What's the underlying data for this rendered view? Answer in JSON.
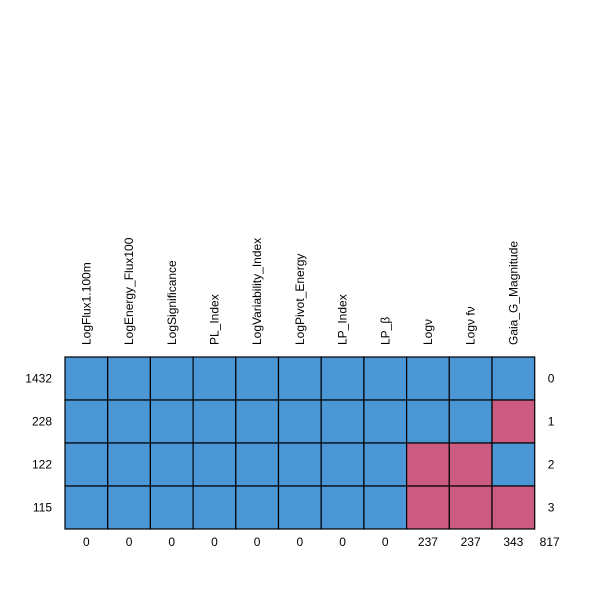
{
  "chart_data": {
    "type": "heatmap",
    "title": "",
    "columns": [
      "LogFlux1.100m",
      "LogEnergy_Flux100",
      "LogSignificance",
      "PL_Index",
      "LogVariability_Index",
      "LogPivot_Energy",
      "LP_Index",
      "LP_β",
      "Logν",
      "Logν fν",
      "Gaia_G_Magnitude"
    ],
    "row_counts": [
      "1432",
      "228",
      "122",
      "115"
    ],
    "row_index": [
      "0",
      "1",
      "2",
      "3"
    ],
    "column_missing_counts": [
      "0",
      "0",
      "0",
      "0",
      "0",
      "0",
      "0",
      "0",
      "237",
      "237",
      "343"
    ],
    "total_missing": "817",
    "missing_matrix": [
      [
        0,
        0,
        0,
        0,
        0,
        0,
        0,
        0,
        0,
        0,
        0
      ],
      [
        0,
        0,
        0,
        0,
        0,
        0,
        0,
        0,
        0,
        0,
        1
      ],
      [
        0,
        0,
        0,
        0,
        0,
        0,
        0,
        0,
        1,
        1,
        0
      ],
      [
        0,
        0,
        0,
        0,
        0,
        0,
        0,
        0,
        1,
        1,
        1
      ]
    ],
    "colors": {
      "present": "#4b97d6",
      "missing": "#cb5b80",
      "border": "#000000"
    }
  }
}
